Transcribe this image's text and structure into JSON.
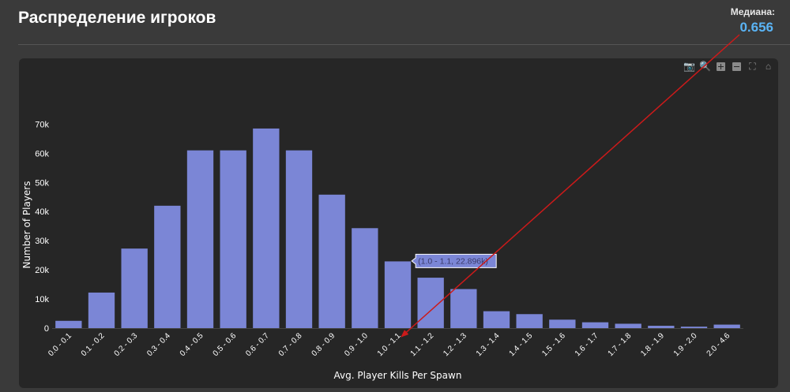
{
  "header": {
    "title": "Распределение игроков",
    "median_label": "Медиана:",
    "median_value": "0.656"
  },
  "modebar": [
    "camera-icon",
    "zoom-icon",
    "zoom-in-icon",
    "zoom-out-icon",
    "autoscale-icon",
    "home-icon"
  ],
  "tooltip": {
    "text": "(1.0 - 1.1, 22.896k)",
    "category_index": 10
  },
  "colors": {
    "bar": "#7b86d6",
    "median": "#5ab4f5",
    "annotation": "#cc1a1a",
    "tooltip_bg": "#7b86d6"
  },
  "chart_data": {
    "type": "bar",
    "categories": [
      "0.0 - 0.1",
      "0.1 - 0.2",
      "0.2 - 0.3",
      "0.3 - 0.4",
      "0.4 - 0.5",
      "0.5 - 0.6",
      "0.6 - 0.7",
      "0.7 - 0.8",
      "0.8 - 0.9",
      "0.9 - 1.0",
      "1.0 - 1.1",
      "1.1 - 1.2",
      "1.2 - 1.3",
      "1.3 - 1.4",
      "1.4 - 1.5",
      "1.5 - 1.6",
      "1.6 - 1.7",
      "1.7 - 1.8",
      "1.8 - 1.9",
      "1.9 - 2.0",
      "2.0 - 4.6"
    ],
    "values": [
      2500,
      12200,
      27300,
      42000,
      61000,
      61000,
      68500,
      61000,
      45800,
      34300,
      22896,
      17300,
      13400,
      5800,
      4800,
      2900,
      2000,
      1500,
      800,
      500,
      1200
    ],
    "xlabel": "Avg. Player Kills Per Spawn",
    "ylabel": "Number of Players",
    "yticks": [
      0,
      10000,
      20000,
      30000,
      40000,
      50000,
      60000,
      70000
    ],
    "ytick_labels": [
      "0",
      "10k",
      "20k",
      "30k",
      "40k",
      "50k",
      "60k",
      "70k"
    ],
    "ylim": [
      0,
      72000
    ],
    "grid": false
  }
}
